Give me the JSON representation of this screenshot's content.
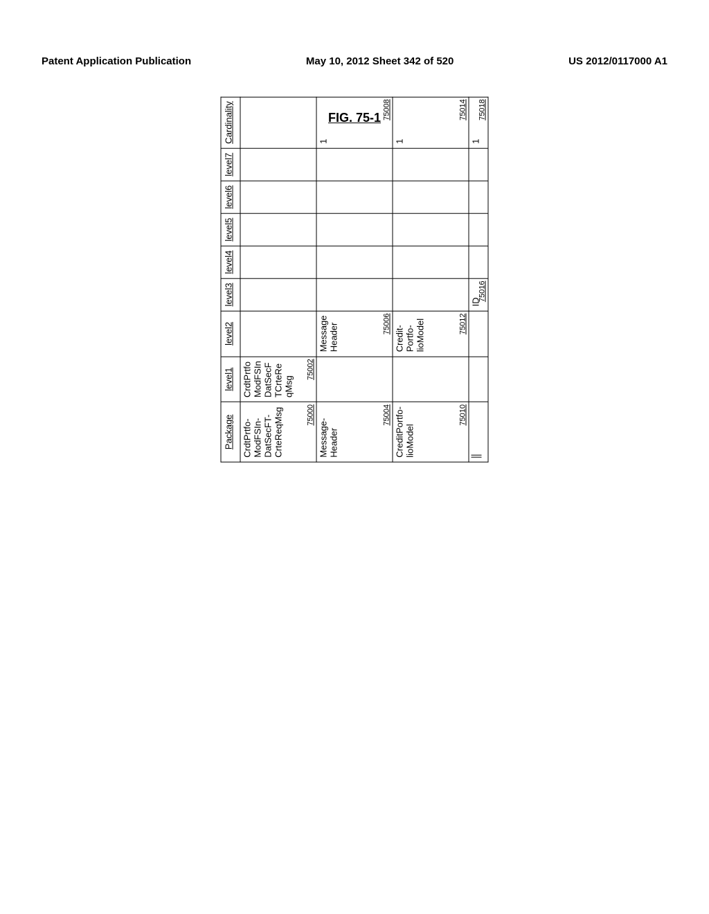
{
  "header": {
    "left": "Patent Application Publication",
    "center": "May 10, 2012  Sheet 342 of 520",
    "right": "US 2012/0117000 A1"
  },
  "figure_title": "FIG. 75-1",
  "columns": [
    "Package",
    "level1",
    "level2",
    "level3",
    "level4",
    "level5",
    "level6",
    "level7",
    "Cardinality"
  ],
  "rows": [
    {
      "package": {
        "text": "CrdtPrtfo-ModFSIn-DatSecFT-CrteReqMsg",
        "ref": "75000"
      },
      "level1": {
        "text": "CrdtPrtfo ModFSIn DatSecF TCrteRe qMsg",
        "ref": "75002"
      },
      "level2": {
        "text": "",
        "ref": ""
      },
      "level3": {
        "text": "",
        "ref": ""
      },
      "level4": {
        "text": "",
        "ref": ""
      },
      "level5": {
        "text": "",
        "ref": ""
      },
      "level6": {
        "text": "",
        "ref": ""
      },
      "level7": {
        "text": "",
        "ref": ""
      },
      "card": {
        "text": "",
        "ref": ""
      }
    },
    {
      "package": {
        "text": "Message-Header",
        "ref": "75004"
      },
      "level1": {
        "text": "",
        "ref": ""
      },
      "level2": {
        "text": "Message Header",
        "ref": "75006"
      },
      "level3": {
        "text": "",
        "ref": ""
      },
      "level4": {
        "text": "",
        "ref": ""
      },
      "level5": {
        "text": "",
        "ref": ""
      },
      "level6": {
        "text": "",
        "ref": ""
      },
      "level7": {
        "text": "",
        "ref": ""
      },
      "card": {
        "text": "1",
        "ref": "75008"
      }
    },
    {
      "package": {
        "text": "CreditPortfo-lioModel",
        "ref": "75010"
      },
      "level1": {
        "text": "",
        "ref": ""
      },
      "level2": {
        "text": "Credit-Portfo-lioModel",
        "ref": "75012"
      },
      "level3": {
        "text": "",
        "ref": ""
      },
      "level4": {
        "text": "",
        "ref": ""
      },
      "level5": {
        "text": "",
        "ref": ""
      },
      "level6": {
        "text": "",
        "ref": ""
      },
      "level7": {
        "text": "",
        "ref": ""
      },
      "card": {
        "text": "1",
        "ref": "75014"
      }
    },
    {
      "package": {
        "text": "",
        "ref": "",
        "indent": true
      },
      "level1": {
        "text": "",
        "ref": ""
      },
      "level2": {
        "text": "",
        "ref": ""
      },
      "level3": {
        "text": "ID",
        "ref": "75016"
      },
      "level4": {
        "text": "",
        "ref": ""
      },
      "level5": {
        "text": "",
        "ref": ""
      },
      "level6": {
        "text": "",
        "ref": ""
      },
      "level7": {
        "text": "",
        "ref": ""
      },
      "card": {
        "text": "1",
        "ref": "75018"
      }
    }
  ]
}
